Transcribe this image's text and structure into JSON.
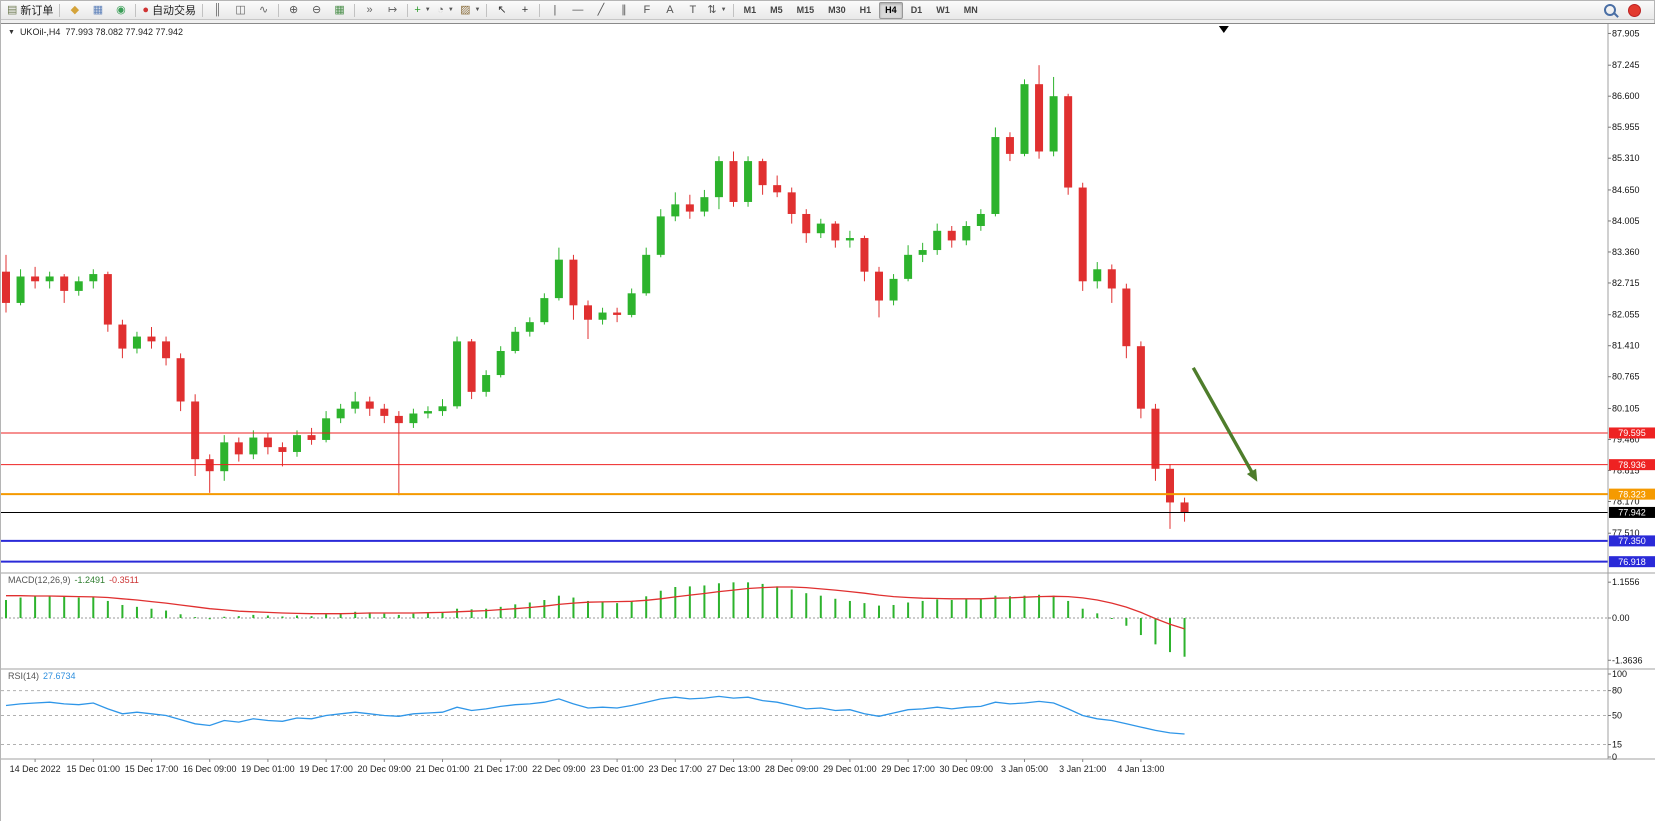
{
  "toolbar": {
    "items": [
      {
        "name": "new-order-button",
        "glyph": "▤",
        "color": "#6f7b52",
        "label": "新订单"
      },
      {
        "sep": 1
      },
      {
        "name": "indicators-icon-button",
        "glyph": "◆",
        "color": "#d4a33a"
      },
      {
        "name": "profiles-icon-button",
        "glyph": "▦",
        "color": "#5b7fb9"
      },
      {
        "name": "navigator-icon-button",
        "glyph": "◉",
        "color": "#3a9e57"
      },
      {
        "sep": 1
      },
      {
        "name": "auto-trading-button",
        "glyph": "●",
        "color": "#d03333",
        "label": "自动交易"
      },
      {
        "sep": 1
      },
      {
        "name": "bar-chart-button",
        "glyph": "║",
        "color": "#666"
      },
      {
        "name": "candlestick-chart-button",
        "glyph": "◫",
        "color": "#666"
      },
      {
        "name": "line-chart-button",
        "glyph": "∿",
        "color": "#666"
      },
      {
        "sep": 1
      },
      {
        "name": "zoom-in-button",
        "glyph": "⊕",
        "color": "#555"
      },
      {
        "name": "zoom-out-button",
        "glyph": "⊖",
        "color": "#555"
      },
      {
        "name": "tile-windows-button",
        "glyph": "▦",
        "color": "#4a8f4a"
      },
      {
        "sep": 1
      },
      {
        "name": "auto-scroll-button",
        "glyph": "»",
        "color": "#666"
      },
      {
        "name": "chart-shift-button",
        "glyph": "↦",
        "color": "#666"
      },
      {
        "sep": 1
      },
      {
        "name": "add-indicator-button",
        "glyph": "+",
        "color": "#2f9e2f",
        "caret": 1
      },
      {
        "name": "period-button",
        "glyph": "◔",
        "color": "#666",
        "caret": 1
      },
      {
        "name": "template-button",
        "glyph": "▨",
        "color": "#8a6d3b",
        "caret": 1
      },
      {
        "sep": 1
      },
      {
        "name": "cursor-button",
        "glyph": "↖",
        "color": "#333"
      },
      {
        "name": "crosshair-button",
        "glyph": "+",
        "color": "#333"
      },
      {
        "sep": 1
      },
      {
        "name": "vertical-line-button",
        "glyph": "|",
        "color": "#555"
      },
      {
        "name": "horizontal-line-button",
        "glyph": "—",
        "color": "#555"
      },
      {
        "name": "trendline-button",
        "glyph": "╱",
        "color": "#555"
      },
      {
        "name": "channel-button",
        "glyph": "∥",
        "color": "#555"
      },
      {
        "name": "fibonacci-button",
        "glyph": "F",
        "color": "#555"
      },
      {
        "name": "text-button",
        "glyph": "A",
        "color": "#555"
      },
      {
        "name": "label-button",
        "glyph": "T",
        "color": "#555"
      },
      {
        "name": "arrows-button",
        "glyph": "⇅",
        "color": "#555",
        "caret": 1
      },
      {
        "sep": 1
      }
    ],
    "timeframes": [
      "M1",
      "M5",
      "M15",
      "M30",
      "H1",
      "H4",
      "D1",
      "W1",
      "MN"
    ],
    "active_timeframe": "H4"
  },
  "chart": {
    "dropdown_glyph": "▼",
    "symbol": "UKOil-,H4",
    "ohlc": "77.993 78.082 77.942 77.942"
  },
  "indicators": {
    "macd_label": "MACD(12,26,9)",
    "macd_main_value": "-1.2491",
    "macd_signal_value": "-0.3511",
    "rsi_label": "RSI(14)",
    "rsi_value": "27.6734"
  },
  "chart_data": {
    "type": "candlestick",
    "symbol": "UKOil-",
    "timeframe": "H4",
    "ohlc_display": {
      "open": "77.993",
      "high": "78.082",
      "low": "77.942",
      "close": "77.942"
    },
    "y_axis_labels": [
      "87.905",
      "87.245",
      "86.600",
      "85.955",
      "85.310",
      "84.650",
      "84.005",
      "83.360",
      "82.715",
      "82.055",
      "81.410",
      "80.765",
      "80.105",
      "79.460",
      "78.815",
      "78.170",
      "77.510"
    ],
    "price_levels": [
      {
        "price": 79.595,
        "label": "79.595",
        "color": "#ee2222",
        "width": 1
      },
      {
        "price": 78.936,
        "label": "78.936",
        "color": "#ee2222",
        "width": 1
      },
      {
        "price": 78.323,
        "label": "78.323",
        "color": "#f59a00",
        "width": 2
      },
      {
        "price": 77.942,
        "label": "77.942",
        "color": "#000000",
        "width": 1
      },
      {
        "price": 77.35,
        "label": "77.350",
        "color": "#2a2ad8",
        "width": 2
      },
      {
        "price": 76.918,
        "label": "76.918",
        "color": "#2a2ad8",
        "width": 2
      }
    ],
    "time_labels": [
      {
        "t": "14 Dec 2022",
        "i": 2
      },
      {
        "t": "15 Dec 01:00",
        "i": 6
      },
      {
        "t": "15 Dec 17:00",
        "i": 10
      },
      {
        "t": "16 Dec 09:00",
        "i": 14
      },
      {
        "t": "19 Dec 01:00",
        "i": 18
      },
      {
        "t": "19 Dec 17:00",
        "i": 22
      },
      {
        "t": "20 Dec 09:00",
        "i": 26
      },
      {
        "t": "21 Dec 01:00",
        "i": 30
      },
      {
        "t": "21 Dec 17:00",
        "i": 34
      },
      {
        "t": "22 Dec 09:00",
        "i": 38
      },
      {
        "t": "23 Dec 01:00",
        "i": 42
      },
      {
        "t": "23 Dec 17:00",
        "i": 46
      },
      {
        "t": "27 Dec 13:00",
        "i": 50
      },
      {
        "t": "28 Dec 09:00",
        "i": 54
      },
      {
        "t": "29 Dec 01:00",
        "i": 58
      },
      {
        "t": "29 Dec 17:00",
        "i": 62
      },
      {
        "t": "30 Dec 09:00",
        "i": 66
      },
      {
        "t": "3 Jan 05:00",
        "i": 70
      },
      {
        "t": "3 Jan 21:00",
        "i": 74
      },
      {
        "t": "4 Jan 13:00",
        "i": 78
      }
    ],
    "candles": [
      [
        82.95,
        83.3,
        82.1,
        82.3
      ],
      [
        82.3,
        83.0,
        82.25,
        82.85
      ],
      [
        82.85,
        83.05,
        82.6,
        82.75
      ],
      [
        82.75,
        82.95,
        82.6,
        82.85
      ],
      [
        82.85,
        82.9,
        82.3,
        82.55
      ],
      [
        82.55,
        82.85,
        82.45,
        82.75
      ],
      [
        82.75,
        83.0,
        82.6,
        82.9
      ],
      [
        82.9,
        82.95,
        81.7,
        81.85
      ],
      [
        81.85,
        81.95,
        81.15,
        81.35
      ],
      [
        81.35,
        81.7,
        81.25,
        81.6
      ],
      [
        81.6,
        81.8,
        81.35,
        81.5
      ],
      [
        81.5,
        81.6,
        81.0,
        81.15
      ],
      [
        81.15,
        81.25,
        80.05,
        80.25
      ],
      [
        80.25,
        80.4,
        78.7,
        79.05
      ],
      [
        79.05,
        79.15,
        78.35,
        78.8
      ],
      [
        78.8,
        79.55,
        78.6,
        79.4
      ],
      [
        79.4,
        79.5,
        79.0,
        79.15
      ],
      [
        79.15,
        79.65,
        79.05,
        79.5
      ],
      [
        79.5,
        79.6,
        79.15,
        79.3
      ],
      [
        79.3,
        79.4,
        78.9,
        79.2
      ],
      [
        79.2,
        79.65,
        79.1,
        79.55
      ],
      [
        79.55,
        79.7,
        79.35,
        79.45
      ],
      [
        79.45,
        80.05,
        79.4,
        79.9
      ],
      [
        79.9,
        80.2,
        79.8,
        80.1
      ],
      [
        80.1,
        80.45,
        80.0,
        80.25
      ],
      [
        80.25,
        80.35,
        79.95,
        80.1
      ],
      [
        80.1,
        80.2,
        79.8,
        79.95
      ],
      [
        79.95,
        80.05,
        78.3,
        79.8
      ],
      [
        79.8,
        80.1,
        79.7,
        80.0
      ],
      [
        80.0,
        80.15,
        79.9,
        80.05
      ],
      [
        80.05,
        80.3,
        79.95,
        80.15
      ],
      [
        80.15,
        81.6,
        80.1,
        81.5
      ],
      [
        81.5,
        81.55,
        80.3,
        80.45
      ],
      [
        80.45,
        80.9,
        80.35,
        80.8
      ],
      [
        80.8,
        81.4,
        80.75,
        81.3
      ],
      [
        81.3,
        81.8,
        81.25,
        81.7
      ],
      [
        81.7,
        82.0,
        81.6,
        81.9
      ],
      [
        81.9,
        82.5,
        81.85,
        82.4
      ],
      [
        82.4,
        83.45,
        82.35,
        83.2
      ],
      [
        83.2,
        83.3,
        81.95,
        82.25
      ],
      [
        82.25,
        82.35,
        81.55,
        81.95
      ],
      [
        81.95,
        82.2,
        81.85,
        82.1
      ],
      [
        82.1,
        82.2,
        81.9,
        82.05
      ],
      [
        82.05,
        82.6,
        82.0,
        82.5
      ],
      [
        82.5,
        83.45,
        82.45,
        83.3
      ],
      [
        83.3,
        84.25,
        83.25,
        84.1
      ],
      [
        84.1,
        84.6,
        84.0,
        84.35
      ],
      [
        84.35,
        84.55,
        84.05,
        84.2
      ],
      [
        84.2,
        84.65,
        84.1,
        84.5
      ],
      [
        84.5,
        85.35,
        84.25,
        85.25
      ],
      [
        85.25,
        85.45,
        84.3,
        84.4
      ],
      [
        84.4,
        85.35,
        84.3,
        85.25
      ],
      [
        85.25,
        85.3,
        84.55,
        84.75
      ],
      [
        84.75,
        84.95,
        84.5,
        84.6
      ],
      [
        84.6,
        84.7,
        83.95,
        84.15
      ],
      [
        84.15,
        84.25,
        83.55,
        83.75
      ],
      [
        83.75,
        84.05,
        83.65,
        83.95
      ],
      [
        83.95,
        84.0,
        83.45,
        83.6
      ],
      [
        83.6,
        83.8,
        83.45,
        83.65
      ],
      [
        83.65,
        83.7,
        82.75,
        82.95
      ],
      [
        82.95,
        83.05,
        82.0,
        82.35
      ],
      [
        82.35,
        82.9,
        82.25,
        82.8
      ],
      [
        82.8,
        83.5,
        82.75,
        83.3
      ],
      [
        83.3,
        83.55,
        83.15,
        83.4
      ],
      [
        83.4,
        83.95,
        83.3,
        83.8
      ],
      [
        83.8,
        83.9,
        83.45,
        83.6
      ],
      [
        83.6,
        84.0,
        83.5,
        83.9
      ],
      [
        83.9,
        84.25,
        83.8,
        84.15
      ],
      [
        84.15,
        85.95,
        84.1,
        85.75
      ],
      [
        85.75,
        85.85,
        85.25,
        85.4
      ],
      [
        85.4,
        86.95,
        85.35,
        86.85
      ],
      [
        86.85,
        87.245,
        85.3,
        85.45
      ],
      [
        85.45,
        87.0,
        85.35,
        86.6
      ],
      [
        86.6,
        86.65,
        84.55,
        84.7
      ],
      [
        84.7,
        84.8,
        82.55,
        82.75
      ],
      [
        82.75,
        83.15,
        82.6,
        83.0
      ],
      [
        83.0,
        83.1,
        82.3,
        82.6
      ],
      [
        82.6,
        82.7,
        81.15,
        81.4
      ],
      [
        81.4,
        81.5,
        79.9,
        80.1
      ],
      [
        80.1,
        80.2,
        78.6,
        78.85
      ],
      [
        78.85,
        78.95,
        77.6,
        78.15
      ],
      [
        78.15,
        78.25,
        77.75,
        77.94
      ]
    ],
    "colors": {
      "bull": "#2db32d",
      "bear": "#e03030",
      "macd_hist": "#2db32d",
      "macd_signal": "#e03030",
      "rsi": "#2f96e8",
      "arrow": "#4e7d2b",
      "axis_text": "#111",
      "time_text": "#222"
    },
    "macd": {
      "scale_labels": [
        "1.1556",
        "0.00",
        "-1.3636"
      ],
      "hist": [
        0.58,
        0.66,
        0.7,
        0.72,
        0.7,
        0.66,
        0.68,
        0.55,
        0.42,
        0.36,
        0.3,
        0.24,
        0.12,
        0.03,
        -0.04,
        0.04,
        0.06,
        0.1,
        0.08,
        0.05,
        0.08,
        0.06,
        0.12,
        0.16,
        0.2,
        0.18,
        0.14,
        0.1,
        0.14,
        0.16,
        0.18,
        0.3,
        0.28,
        0.3,
        0.36,
        0.44,
        0.5,
        0.58,
        0.72,
        0.66,
        0.55,
        0.5,
        0.48,
        0.55,
        0.7,
        0.88,
        1.0,
        1.02,
        1.05,
        1.12,
        1.15,
        1.15,
        1.1,
        1.02,
        0.92,
        0.8,
        0.72,
        0.62,
        0.55,
        0.48,
        0.4,
        0.42,
        0.5,
        0.55,
        0.6,
        0.58,
        0.6,
        0.62,
        0.72,
        0.7,
        0.72,
        0.75,
        0.72,
        0.55,
        0.3,
        0.15,
        0.0,
        -0.25,
        -0.55,
        -0.85,
        -1.1,
        -1.2491
      ],
      "signal": [
        0.72,
        0.72,
        0.71,
        0.71,
        0.7,
        0.69,
        0.68,
        0.66,
        0.62,
        0.58,
        0.53,
        0.48,
        0.42,
        0.36,
        0.3,
        0.26,
        0.22,
        0.2,
        0.18,
        0.16,
        0.15,
        0.14,
        0.14,
        0.14,
        0.15,
        0.16,
        0.16,
        0.16,
        0.16,
        0.17,
        0.18,
        0.2,
        0.22,
        0.24,
        0.27,
        0.3,
        0.34,
        0.38,
        0.44,
        0.48,
        0.51,
        0.52,
        0.53,
        0.54,
        0.57,
        0.62,
        0.68,
        0.74,
        0.79,
        0.85,
        0.9,
        0.95,
        0.98,
        1.0,
        1.0,
        0.98,
        0.94,
        0.9,
        0.85,
        0.8,
        0.74,
        0.69,
        0.66,
        0.64,
        0.63,
        0.62,
        0.62,
        0.62,
        0.64,
        0.65,
        0.67,
        0.69,
        0.7,
        0.69,
        0.65,
        0.58,
        0.48,
        0.35,
        0.18,
        -0.02,
        -0.2,
        -0.3511
      ]
    },
    "rsi": {
      "levels": [
        80,
        50,
        15
      ],
      "scale_labels": [
        "100",
        "80",
        "50",
        "15",
        "0"
      ],
      "line": [
        62,
        64,
        65,
        66,
        64,
        63,
        65,
        58,
        52,
        54,
        52,
        50,
        45,
        40,
        38,
        44,
        42,
        46,
        44,
        43,
        47,
        46,
        50,
        52,
        54,
        52,
        50,
        49,
        52,
        53,
        54,
        60,
        56,
        58,
        61,
        63,
        64,
        66,
        70,
        64,
        59,
        60,
        59,
        62,
        66,
        70,
        72,
        70,
        71,
        73,
        71,
        72,
        68,
        66,
        62,
        58,
        59,
        56,
        57,
        52,
        49,
        53,
        57,
        58,
        60,
        58,
        60,
        61,
        66,
        64,
        65,
        67,
        65,
        58,
        50,
        46,
        44,
        40,
        36,
        32,
        29,
        27.67
      ]
    },
    "annotation_arrow": {
      "from": {
        "bar": 81.6,
        "price": 80.95
      },
      "to": {
        "bar": 86.0,
        "price": 78.58
      }
    },
    "shift_marker_bar": 83.7
  }
}
